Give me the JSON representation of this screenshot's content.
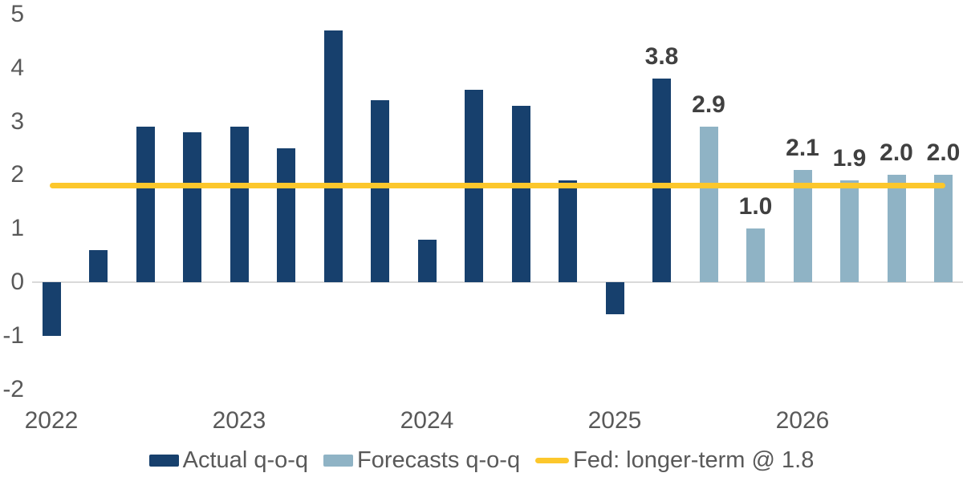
{
  "chart_data": {
    "type": "bar",
    "title": "",
    "grid": "zero-line-only",
    "legend_position": "bottom",
    "y_axis": {
      "min": -2,
      "max": 5,
      "ticks": [
        5,
        4,
        3,
        2,
        1,
        0,
        -1,
        -2
      ]
    },
    "x_year_labels": [
      "2022",
      "2023",
      "2024",
      "2025",
      "2026"
    ],
    "series_colors": {
      "actual": "#17406d",
      "forecast": "#8fb3c5"
    },
    "points": [
      {
        "q": "2022 Q1",
        "value": -1.0,
        "series": "actual"
      },
      {
        "q": "2022 Q2",
        "value": 0.6,
        "series": "actual"
      },
      {
        "q": "2022 Q3",
        "value": 2.9,
        "series": "actual"
      },
      {
        "q": "2022 Q4",
        "value": 2.8,
        "series": "actual"
      },
      {
        "q": "2023 Q1",
        "value": 2.9,
        "series": "actual"
      },
      {
        "q": "2023 Q2",
        "value": 2.5,
        "series": "actual"
      },
      {
        "q": "2023 Q3",
        "value": 4.7,
        "series": "actual"
      },
      {
        "q": "2023 Q4",
        "value": 3.4,
        "series": "actual"
      },
      {
        "q": "2024 Q1",
        "value": 0.8,
        "series": "actual"
      },
      {
        "q": "2024 Q2",
        "value": 3.6,
        "series": "actual"
      },
      {
        "q": "2024 Q3",
        "value": 3.3,
        "series": "actual"
      },
      {
        "q": "2024 Q4",
        "value": 1.9,
        "series": "actual"
      },
      {
        "q": "2025 Q1",
        "value": -0.6,
        "series": "actual"
      },
      {
        "q": "2025 Q2",
        "value": 3.8,
        "series": "actual",
        "label": "3.8"
      },
      {
        "q": "2025 Q3",
        "value": 2.9,
        "series": "forecast",
        "label": "2.9"
      },
      {
        "q": "2025 Q4",
        "value": 1.0,
        "series": "forecast",
        "label": "1.0"
      },
      {
        "q": "2026 Q1",
        "value": 2.1,
        "series": "forecast",
        "label": "2.1"
      },
      {
        "q": "2026 Q2",
        "value": 1.9,
        "series": "forecast",
        "label": "1.9"
      },
      {
        "q": "2026 Q3",
        "value": 2.0,
        "series": "forecast",
        "label": "2.0"
      },
      {
        "q": "2026 Q4",
        "value": 2.0,
        "series": "forecast",
        "label": "2.0"
      }
    ],
    "reference_line": {
      "value": 1.8,
      "color": "#fcc72c",
      "label": "Fed: longer-term @ 1.8"
    },
    "legend": [
      {
        "label": "Actual q-o-q",
        "type": "square",
        "color": "#17406d"
      },
      {
        "label": "Forecasts q-o-q",
        "type": "square",
        "color": "#8fb3c5"
      },
      {
        "label": "Fed: longer-term @ 1.8",
        "type": "line",
        "color": "#fcc72c"
      }
    ]
  }
}
